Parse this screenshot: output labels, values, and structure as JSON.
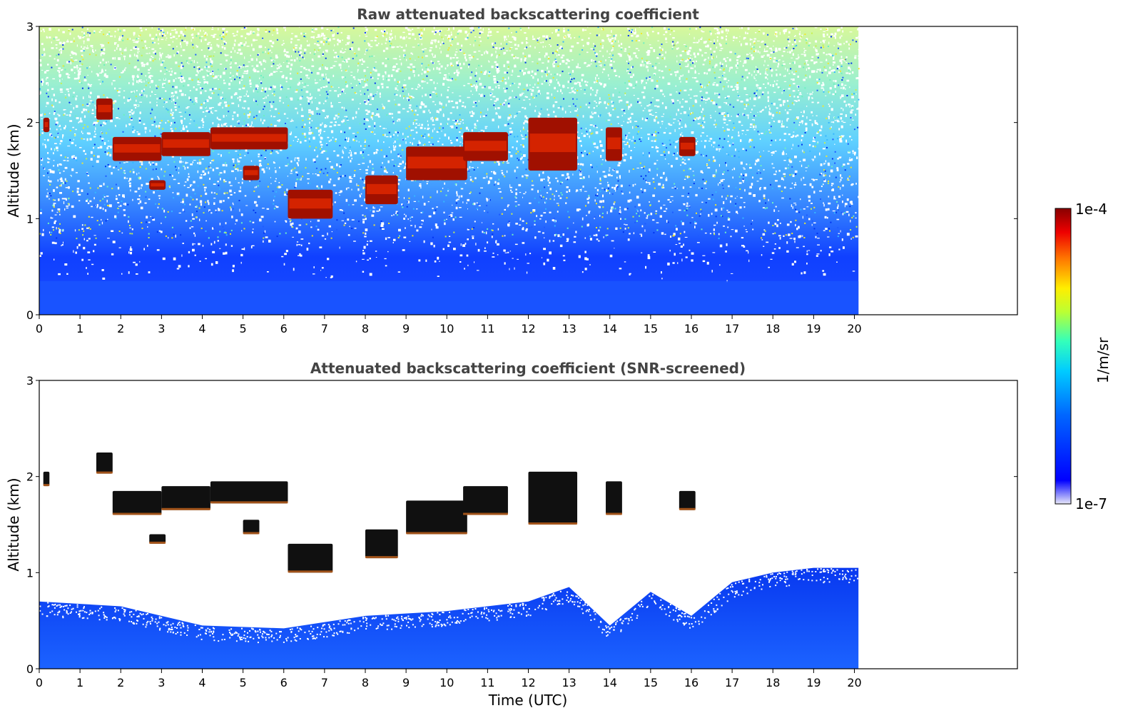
{
  "chart_data": [
    {
      "type": "heatmap",
      "title": "Raw attenuated backscattering coefficient",
      "xlabel": "",
      "ylabel": "Altitude (km)",
      "xlim": [
        0,
        24
      ],
      "ylim": [
        0,
        3
      ],
      "x_ticks": [
        "0",
        "1",
        "2",
        "3",
        "4",
        "5",
        "6",
        "7",
        "8",
        "9",
        "10",
        "11",
        "12",
        "13",
        "14",
        "15",
        "16",
        "17",
        "18",
        "19",
        "20"
      ],
      "y_ticks": [
        "0",
        "1",
        "2",
        "3"
      ],
      "data_extent_hours": [
        0,
        20.1
      ],
      "noise_top_km": 3.0,
      "cloud_layers": [
        {
          "t0": 0.1,
          "t1": 0.25,
          "z0": 1.9,
          "z1": 2.05
        },
        {
          "t0": 1.4,
          "t1": 1.8,
          "z0": 2.03,
          "z1": 2.25
        },
        {
          "t0": 1.8,
          "t1": 3.0,
          "z0": 1.6,
          "z1": 1.85
        },
        {
          "t0": 2.7,
          "t1": 3.1,
          "z0": 1.3,
          "z1": 1.4
        },
        {
          "t0": 3.0,
          "t1": 4.2,
          "z0": 1.65,
          "z1": 1.9
        },
        {
          "t0": 4.2,
          "t1": 6.1,
          "z0": 1.72,
          "z1": 1.95
        },
        {
          "t0": 5.0,
          "t1": 5.4,
          "z0": 1.4,
          "z1": 1.55
        },
        {
          "t0": 6.1,
          "t1": 7.2,
          "z0": 1.0,
          "z1": 1.3
        },
        {
          "t0": 8.0,
          "t1": 8.8,
          "z0": 1.15,
          "z1": 1.45
        },
        {
          "t0": 9.0,
          "t1": 10.5,
          "z0": 1.4,
          "z1": 1.75
        },
        {
          "t0": 10.4,
          "t1": 11.5,
          "z0": 1.6,
          "z1": 1.9
        },
        {
          "t0": 12.0,
          "t1": 13.2,
          "z0": 1.5,
          "z1": 2.05
        },
        {
          "t0": 13.9,
          "t1": 14.3,
          "z0": 1.6,
          "z1": 1.95
        },
        {
          "t0": 15.7,
          "t1": 16.1,
          "z0": 1.65,
          "z1": 1.85
        }
      ]
    },
    {
      "type": "heatmap",
      "title": "Attenuated backscattering coefficient (SNR-screened)",
      "xlabel": "Time (UTC)",
      "ylabel": "Altitude (km)",
      "xlim": [
        0,
        24
      ],
      "ylim": [
        0,
        3
      ],
      "x_ticks": [
        "0",
        "1",
        "2",
        "3",
        "4",
        "5",
        "6",
        "7",
        "8",
        "9",
        "10",
        "11",
        "12",
        "13",
        "14",
        "15",
        "16",
        "17",
        "18",
        "19",
        "20"
      ],
      "y_ticks": [
        "0",
        "1",
        "2",
        "3"
      ],
      "data_extent_hours": [
        0,
        20.1
      ],
      "boundary_layer_top_km": [
        [
          0,
          0.7
        ],
        [
          2,
          0.65
        ],
        [
          4,
          0.45
        ],
        [
          6,
          0.42
        ],
        [
          8,
          0.55
        ],
        [
          10,
          0.6
        ],
        [
          12,
          0.7
        ],
        [
          13,
          0.85
        ],
        [
          14,
          0.45
        ],
        [
          15,
          0.8
        ],
        [
          16,
          0.55
        ],
        [
          17,
          0.9
        ],
        [
          18,
          1.0
        ],
        [
          19,
          1.05
        ],
        [
          20.1,
          1.05
        ]
      ],
      "cloud_layers": [
        {
          "t0": 0.1,
          "t1": 0.25,
          "z0": 1.9,
          "z1": 2.05
        },
        {
          "t0": 1.4,
          "t1": 1.8,
          "z0": 2.03,
          "z1": 2.25
        },
        {
          "t0": 1.8,
          "t1": 3.0,
          "z0": 1.6,
          "z1": 1.85
        },
        {
          "t0": 2.7,
          "t1": 3.1,
          "z0": 1.3,
          "z1": 1.4
        },
        {
          "t0": 3.0,
          "t1": 4.2,
          "z0": 1.65,
          "z1": 1.9
        },
        {
          "t0": 4.2,
          "t1": 6.1,
          "z0": 1.72,
          "z1": 1.95
        },
        {
          "t0": 5.0,
          "t1": 5.4,
          "z0": 1.4,
          "z1": 1.55
        },
        {
          "t0": 6.1,
          "t1": 7.2,
          "z0": 1.0,
          "z1": 1.3
        },
        {
          "t0": 8.0,
          "t1": 8.8,
          "z0": 1.15,
          "z1": 1.45
        },
        {
          "t0": 9.0,
          "t1": 10.5,
          "z0": 1.4,
          "z1": 1.75
        },
        {
          "t0": 10.4,
          "t1": 11.5,
          "z0": 1.6,
          "z1": 1.9
        },
        {
          "t0": 12.0,
          "t1": 13.2,
          "z0": 1.5,
          "z1": 2.05
        },
        {
          "t0": 13.9,
          "t1": 14.3,
          "z0": 1.6,
          "z1": 1.95
        },
        {
          "t0": 15.7,
          "t1": 16.1,
          "z0": 1.65,
          "z1": 1.85
        }
      ]
    }
  ],
  "colorbar": {
    "max_label": "1e-4",
    "min_label": "1e-7",
    "unit_label": "1/m/sr",
    "colormap": "jet",
    "stops": [
      "#e8e8f8",
      "#0000ff",
      "#00aaff",
      "#00ffdd",
      "#aaff44",
      "#ffff00",
      "#ff8800",
      "#ff0000",
      "#800000"
    ]
  }
}
